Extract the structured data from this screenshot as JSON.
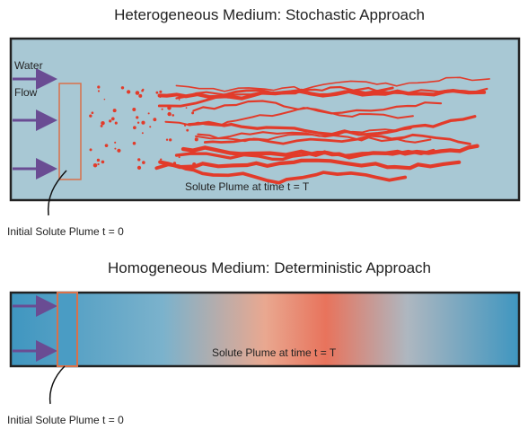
{
  "top_panel": {
    "title": "Heterogeneous Medium: Stochastic Approach",
    "flow_label_1": "Water",
    "flow_label_2": "Flow",
    "plume_label": "Solute Plume at time t = T",
    "initial_label": "Initial Solute Plume t = 0"
  },
  "bottom_panel": {
    "title": "Homogeneous Medium: Deterministic Approach",
    "plume_label": "Solute Plume at time t = T",
    "initial_label": "Initial Solute Plume t = 0"
  }
}
